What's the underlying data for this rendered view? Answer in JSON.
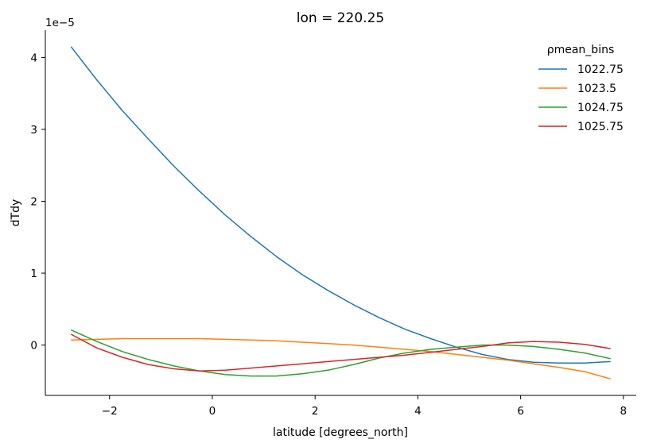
{
  "chart_data": {
    "type": "line",
    "title": "lon = 220.25",
    "xlabel": "latitude [degrees_north]",
    "ylabel": "dTdy",
    "y_offset_text": "1e−5",
    "xlim": [
      -3.25,
      8.25
    ],
    "ylim": [
      -0.7,
      4.38
    ],
    "x_ticks": [
      -2,
      0,
      2,
      4,
      6,
      8
    ],
    "x_tick_labels": [
      "−2",
      "0",
      "2",
      "4",
      "6",
      "8"
    ],
    "y_ticks": [
      0,
      1,
      2,
      3,
      4
    ],
    "y_tick_labels": [
      "0",
      "1",
      "2",
      "3",
      "4"
    ],
    "grid": false,
    "legend": {
      "title": "ρmean_bins",
      "placement": "top-right"
    },
    "x": [
      -2.75,
      -2.25,
      -1.75,
      -1.25,
      -0.75,
      -0.25,
      0.25,
      0.75,
      1.25,
      1.75,
      2.25,
      2.75,
      3.25,
      3.75,
      4.25,
      4.75,
      5.25,
      5.75,
      6.25,
      6.75,
      7.25,
      7.75
    ],
    "series": [
      {
        "name": "1022.75",
        "color": "#1f77b4",
        "values": [
          4.15,
          3.69,
          3.26,
          2.87,
          2.49,
          2.14,
          1.81,
          1.51,
          1.23,
          0.98,
          0.76,
          0.56,
          0.38,
          0.22,
          0.09,
          -0.03,
          -0.13,
          -0.2,
          -0.24,
          -0.25,
          -0.25,
          -0.23
        ]
      },
      {
        "name": "1023.5",
        "color": "#ff7f0e",
        "values": [
          0.07,
          0.08,
          0.09,
          0.09,
          0.09,
          0.09,
          0.08,
          0.07,
          0.06,
          0.04,
          0.02,
          0.0,
          -0.03,
          -0.06,
          -0.09,
          -0.13,
          -0.17,
          -0.21,
          -0.26,
          -0.31,
          -0.37,
          -0.47
        ]
      },
      {
        "name": "1024.75",
        "color": "#2ca02c",
        "values": [
          0.21,
          0.05,
          -0.09,
          -0.2,
          -0.29,
          -0.36,
          -0.41,
          -0.43,
          -0.43,
          -0.4,
          -0.35,
          -0.27,
          -0.18,
          -0.11,
          -0.06,
          -0.03,
          0.0,
          0.0,
          -0.02,
          -0.06,
          -0.11,
          -0.19
        ]
      },
      {
        "name": "1025.75",
        "color": "#d62728",
        "values": [
          0.15,
          -0.04,
          -0.17,
          -0.27,
          -0.33,
          -0.36,
          -0.35,
          -0.32,
          -0.29,
          -0.26,
          -0.23,
          -0.2,
          -0.17,
          -0.14,
          -0.1,
          -0.06,
          -0.02,
          0.03,
          0.05,
          0.04,
          0.01,
          -0.05
        ]
      }
    ]
  }
}
